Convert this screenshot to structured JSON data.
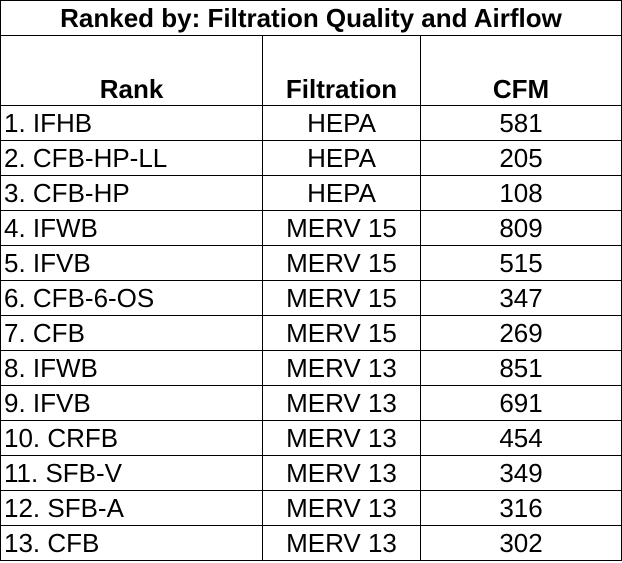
{
  "title": "Ranked by: Filtration Quality and Airflow",
  "headers": {
    "rank": "Rank",
    "filtration": "Filtration",
    "cfm": "CFM"
  },
  "rows": [
    {
      "rank": "1. IFHB",
      "filtration": "HEPA",
      "cfm": "581"
    },
    {
      "rank": "2. CFB-HP-LL",
      "filtration": "HEPA",
      "cfm": "205"
    },
    {
      "rank": "3. CFB-HP",
      "filtration": "HEPA",
      "cfm": "108"
    },
    {
      "rank": "4. IFWB",
      "filtration": "MERV 15",
      "cfm": "809"
    },
    {
      "rank": "5. IFVB",
      "filtration": "MERV 15",
      "cfm": "515"
    },
    {
      "rank": "6. CFB-6-OS",
      "filtration": "MERV 15",
      "cfm": "347"
    },
    {
      "rank": "7. CFB",
      "filtration": "MERV 15",
      "cfm": "269"
    },
    {
      "rank": "8. IFWB",
      "filtration": "MERV 13",
      "cfm": "851"
    },
    {
      "rank": "9. IFVB",
      "filtration": "MERV 13",
      "cfm": "691"
    },
    {
      "rank": "10. CRFB",
      "filtration": "MERV 13",
      "cfm": "454"
    },
    {
      "rank": "11. SFB-V",
      "filtration": "MERV 13",
      "cfm": "349"
    },
    {
      "rank": "12. SFB-A",
      "filtration": "MERV 13",
      "cfm": "316"
    },
    {
      "rank": "13. CFB",
      "filtration": "MERV 13",
      "cfm": "302"
    }
  ]
}
